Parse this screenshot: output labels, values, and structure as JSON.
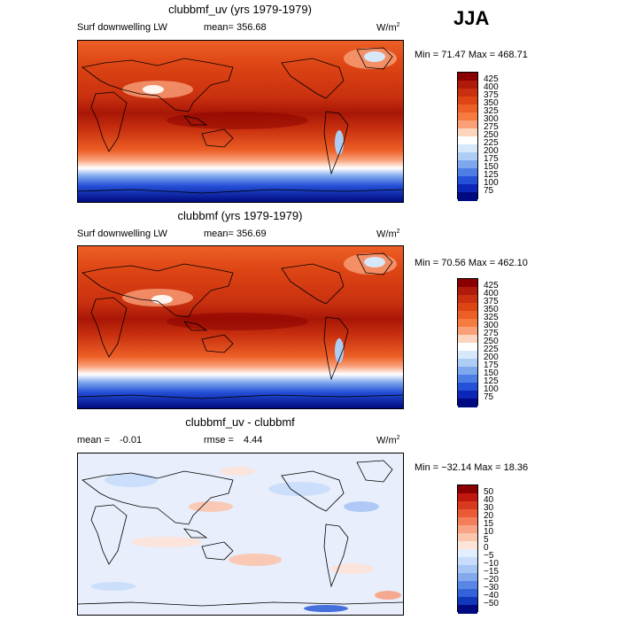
{
  "season": "JJA",
  "panels": [
    {
      "title": "clubbmf_uv (yrs 1979-1979)",
      "variable": "Surf downwelling LW",
      "stats_left": "",
      "stat_label": "mean=",
      "stat_value": "356.68",
      "units_base": "W/m",
      "units_exp": "2",
      "min_max": "Min =  71.47 Max = 468.71",
      "colorbar": {
        "labels": [
          "425",
          "400",
          "375",
          "350",
          "325",
          "300",
          "275",
          "250",
          "225",
          "200",
          "175",
          "150",
          "125",
          "100",
          "75"
        ],
        "colors": [
          "#8a0000",
          "#b01a0a",
          "#c9300f",
          "#dd4514",
          "#ec5f26",
          "#f57b41",
          "#f9a079",
          "#fcd5be",
          "#ffffff",
          "#d7e8fb",
          "#aecdf5",
          "#7fa7ee",
          "#4e7de6",
          "#2550d8",
          "#0c26b8",
          "#000a80"
        ]
      }
    },
    {
      "title": "clubbmf (yrs 1979-1979)",
      "variable": "Surf downwelling LW",
      "stat_label": "mean=",
      "stat_value": "356.69",
      "units_base": "W/m",
      "units_exp": "2",
      "min_max": "Min =  70.56 Max = 462.10",
      "colorbar": {
        "labels": [
          "425",
          "400",
          "375",
          "350",
          "325",
          "300",
          "275",
          "250",
          "225",
          "200",
          "175",
          "150",
          "125",
          "100",
          "75"
        ],
        "colors": [
          "#8a0000",
          "#b01a0a",
          "#c9300f",
          "#dd4514",
          "#ec5f26",
          "#f57b41",
          "#f9a079",
          "#fcd5be",
          "#ffffff",
          "#d7e8fb",
          "#aecdf5",
          "#7fa7ee",
          "#4e7de6",
          "#2550d8",
          "#0c26b8",
          "#000a80"
        ]
      }
    },
    {
      "title": "clubbmf_uv - clubbmf",
      "mean_label": "mean =",
      "mean_value": "-0.01",
      "rmse_label": "rmse =",
      "rmse_value": "4.44",
      "units_base": "W/m",
      "units_exp": "2",
      "min_max": "Min = −32.14 Max =  18.36",
      "colorbar": {
        "labels": [
          "50",
          "40",
          "30",
          "20",
          "15",
          "10",
          "5",
          "0",
          "−5",
          "−10",
          "−15",
          "−20",
          "−30",
          "−40",
          "−50"
        ],
        "colors": [
          "#8a0000",
          "#c0180f",
          "#d83a1f",
          "#ea5a35",
          "#f27f5a",
          "#f7a384",
          "#fbc6ae",
          "#fde4d8",
          "#e3efff",
          "#c8ddfb",
          "#a8c6f5",
          "#82a8ee",
          "#5a86e5",
          "#3462d8",
          "#1237b8",
          "#000a80"
        ]
      }
    }
  ]
}
